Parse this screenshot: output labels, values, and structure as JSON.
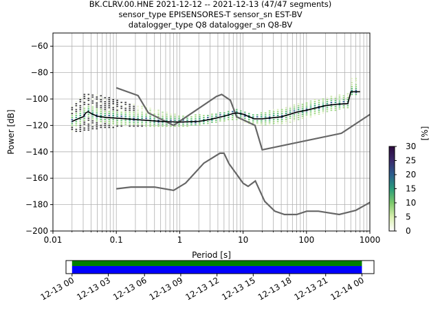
{
  "title": {
    "line1": "BK.CLRV.00.HNE   2021-12-12 -- 2021-12-13  (47/47 segments)",
    "line2": "sensor_type EPISENSORES-T sensor_sn EST-BV",
    "line3": "datalogger_type Q8 datalogger_sn Q8-BV"
  },
  "chart_data": [
    {
      "type": "heatmap",
      "xlabel": "Period [s]",
      "ylabel": "Power [dB]",
      "xscale": "log",
      "xlim": [
        0.01,
        1000
      ],
      "ylim": [
        -200,
        -50
      ],
      "x_ticks": [
        {
          "v": 0.01,
          "label": "0.01"
        },
        {
          "v": 0.1,
          "label": "0.1"
        },
        {
          "v": 1,
          "label": "1"
        },
        {
          "v": 10,
          "label": "10"
        },
        {
          "v": 100,
          "label": "100"
        },
        {
          "v": 1000,
          "label": "1000"
        }
      ],
      "y_ticks": [
        {
          "v": -60,
          "label": "−60"
        },
        {
          "v": -80,
          "label": "−80"
        },
        {
          "v": -100,
          "label": "−100"
        },
        {
          "v": -120,
          "label": "−120"
        },
        {
          "v": -140,
          "label": "−140"
        },
        {
          "v": -160,
          "label": "−160"
        },
        {
          "v": -180,
          "label": "−180"
        },
        {
          "v": -200,
          "label": "−200"
        }
      ],
      "grid": true,
      "colorbar": {
        "label": "[%]",
        "range": [
          0,
          30
        ],
        "ticks": [
          {
            "v": 0,
            "label": "0"
          },
          {
            "v": 5,
            "label": "5"
          },
          {
            "v": 10,
            "label": "10"
          },
          {
            "v": 15,
            "label": "15"
          },
          {
            "v": 20,
            "label": "20"
          },
          {
            "v": 25,
            "label": "25"
          },
          {
            "v": 30,
            "label": "30"
          }
        ],
        "colors": [
          "#ffffff",
          "#d9efaf",
          "#7cc96b",
          "#2a9b7a",
          "#2b5e8e",
          "#3b2a6b",
          "#2d0a3e"
        ]
      },
      "new_high_noise_model": [
        [
          0.1,
          -91.5
        ],
        [
          0.22,
          -97.4
        ],
        [
          0.32,
          -110.5
        ],
        [
          0.8,
          -120
        ],
        [
          3.8,
          -98
        ],
        [
          4.6,
          -96.5
        ],
        [
          6.3,
          -101
        ],
        [
          7.9,
          -113.5
        ],
        [
          15.4,
          -120
        ],
        [
          20,
          -138.5
        ],
        [
          354.8,
          -126
        ],
        [
          10000,
          -80
        ]
      ],
      "new_low_noise_model": [
        [
          0.1,
          -168
        ],
        [
          0.17,
          -166.7
        ],
        [
          0.4,
          -166.7
        ],
        [
          0.8,
          -169.2
        ],
        [
          1.24,
          -163.7
        ],
        [
          2.4,
          -148.6
        ],
        [
          4.3,
          -141.1
        ],
        [
          5,
          -141.1
        ],
        [
          6,
          -149
        ],
        [
          10,
          -163.8
        ],
        [
          12,
          -166.2
        ],
        [
          15.6,
          -162.1
        ],
        [
          21.9,
          -177.5
        ],
        [
          31.6,
          -185
        ],
        [
          45,
          -187.5
        ],
        [
          70,
          -187.5
        ],
        [
          101,
          -185
        ],
        [
          154,
          -185
        ],
        [
          328,
          -187.5
        ],
        [
          600,
          -184.4
        ],
        [
          10000,
          -151
        ]
      ],
      "mode_curve": [
        [
          0.02,
          -117
        ],
        [
          0.025,
          -115
        ],
        [
          0.03,
          -113.5
        ],
        [
          0.033,
          -110.5
        ],
        [
          0.036,
          -109.5
        ],
        [
          0.04,
          -111
        ],
        [
          0.05,
          -113
        ],
        [
          0.07,
          -114
        ],
        [
          0.1,
          -114.5
        ],
        [
          0.2,
          -115.5
        ],
        [
          0.5,
          -117
        ],
        [
          1,
          -117.5
        ],
        [
          2,
          -117
        ],
        [
          3,
          -115.5
        ],
        [
          5,
          -113
        ],
        [
          7,
          -111
        ],
        [
          8,
          -110.5
        ],
        [
          10,
          -111.5
        ],
        [
          15,
          -115
        ],
        [
          20,
          -115
        ],
        [
          40,
          -113.5
        ],
        [
          70,
          -110
        ],
        [
          100,
          -108.5
        ],
        [
          200,
          -105
        ],
        [
          300,
          -104
        ],
        [
          450,
          -103.5
        ],
        [
          500,
          -94.5
        ],
        [
          600,
          -94.5
        ],
        [
          700,
          -94.5
        ]
      ],
      "density_spread": [
        {
          "x": 0.02,
          "lo": -125,
          "hi": -105
        },
        {
          "x": 0.03,
          "lo": -124,
          "hi": -96
        },
        {
          "x": 0.05,
          "lo": -122,
          "hi": -97
        },
        {
          "x": 0.1,
          "lo": -121,
          "hi": -101
        },
        {
          "x": 0.3,
          "lo": -121,
          "hi": -106
        },
        {
          "x": 1,
          "lo": -121,
          "hi": -113
        },
        {
          "x": 3,
          "lo": -118,
          "hi": -112
        },
        {
          "x": 8,
          "lo": -115,
          "hi": -108
        },
        {
          "x": 15,
          "lo": -120,
          "hi": -112
        },
        {
          "x": 50,
          "lo": -118,
          "hi": -106
        },
        {
          "x": 200,
          "lo": -110,
          "hi": -99
        },
        {
          "x": 450,
          "lo": -106,
          "hi": -96
        },
        {
          "x": 500,
          "lo": -97,
          "hi": -85
        },
        {
          "x": 700,
          "lo": -97,
          "hi": -85
        }
      ]
    },
    {
      "type": "bar",
      "x_tick_labels": [
        "12-13 00",
        "12-13 03",
        "12-13 06",
        "12-13 09",
        "12-13 12",
        "12-13 15",
        "12-13 18",
        "12-13 21",
        "12-14 00"
      ],
      "xlim_hours": [
        -0.5,
        25
      ],
      "coverage": {
        "start_hours": 0,
        "end_hours": 24
      },
      "bar_colors": {
        "data": "#0000ff",
        "used": "#008000"
      }
    }
  ]
}
